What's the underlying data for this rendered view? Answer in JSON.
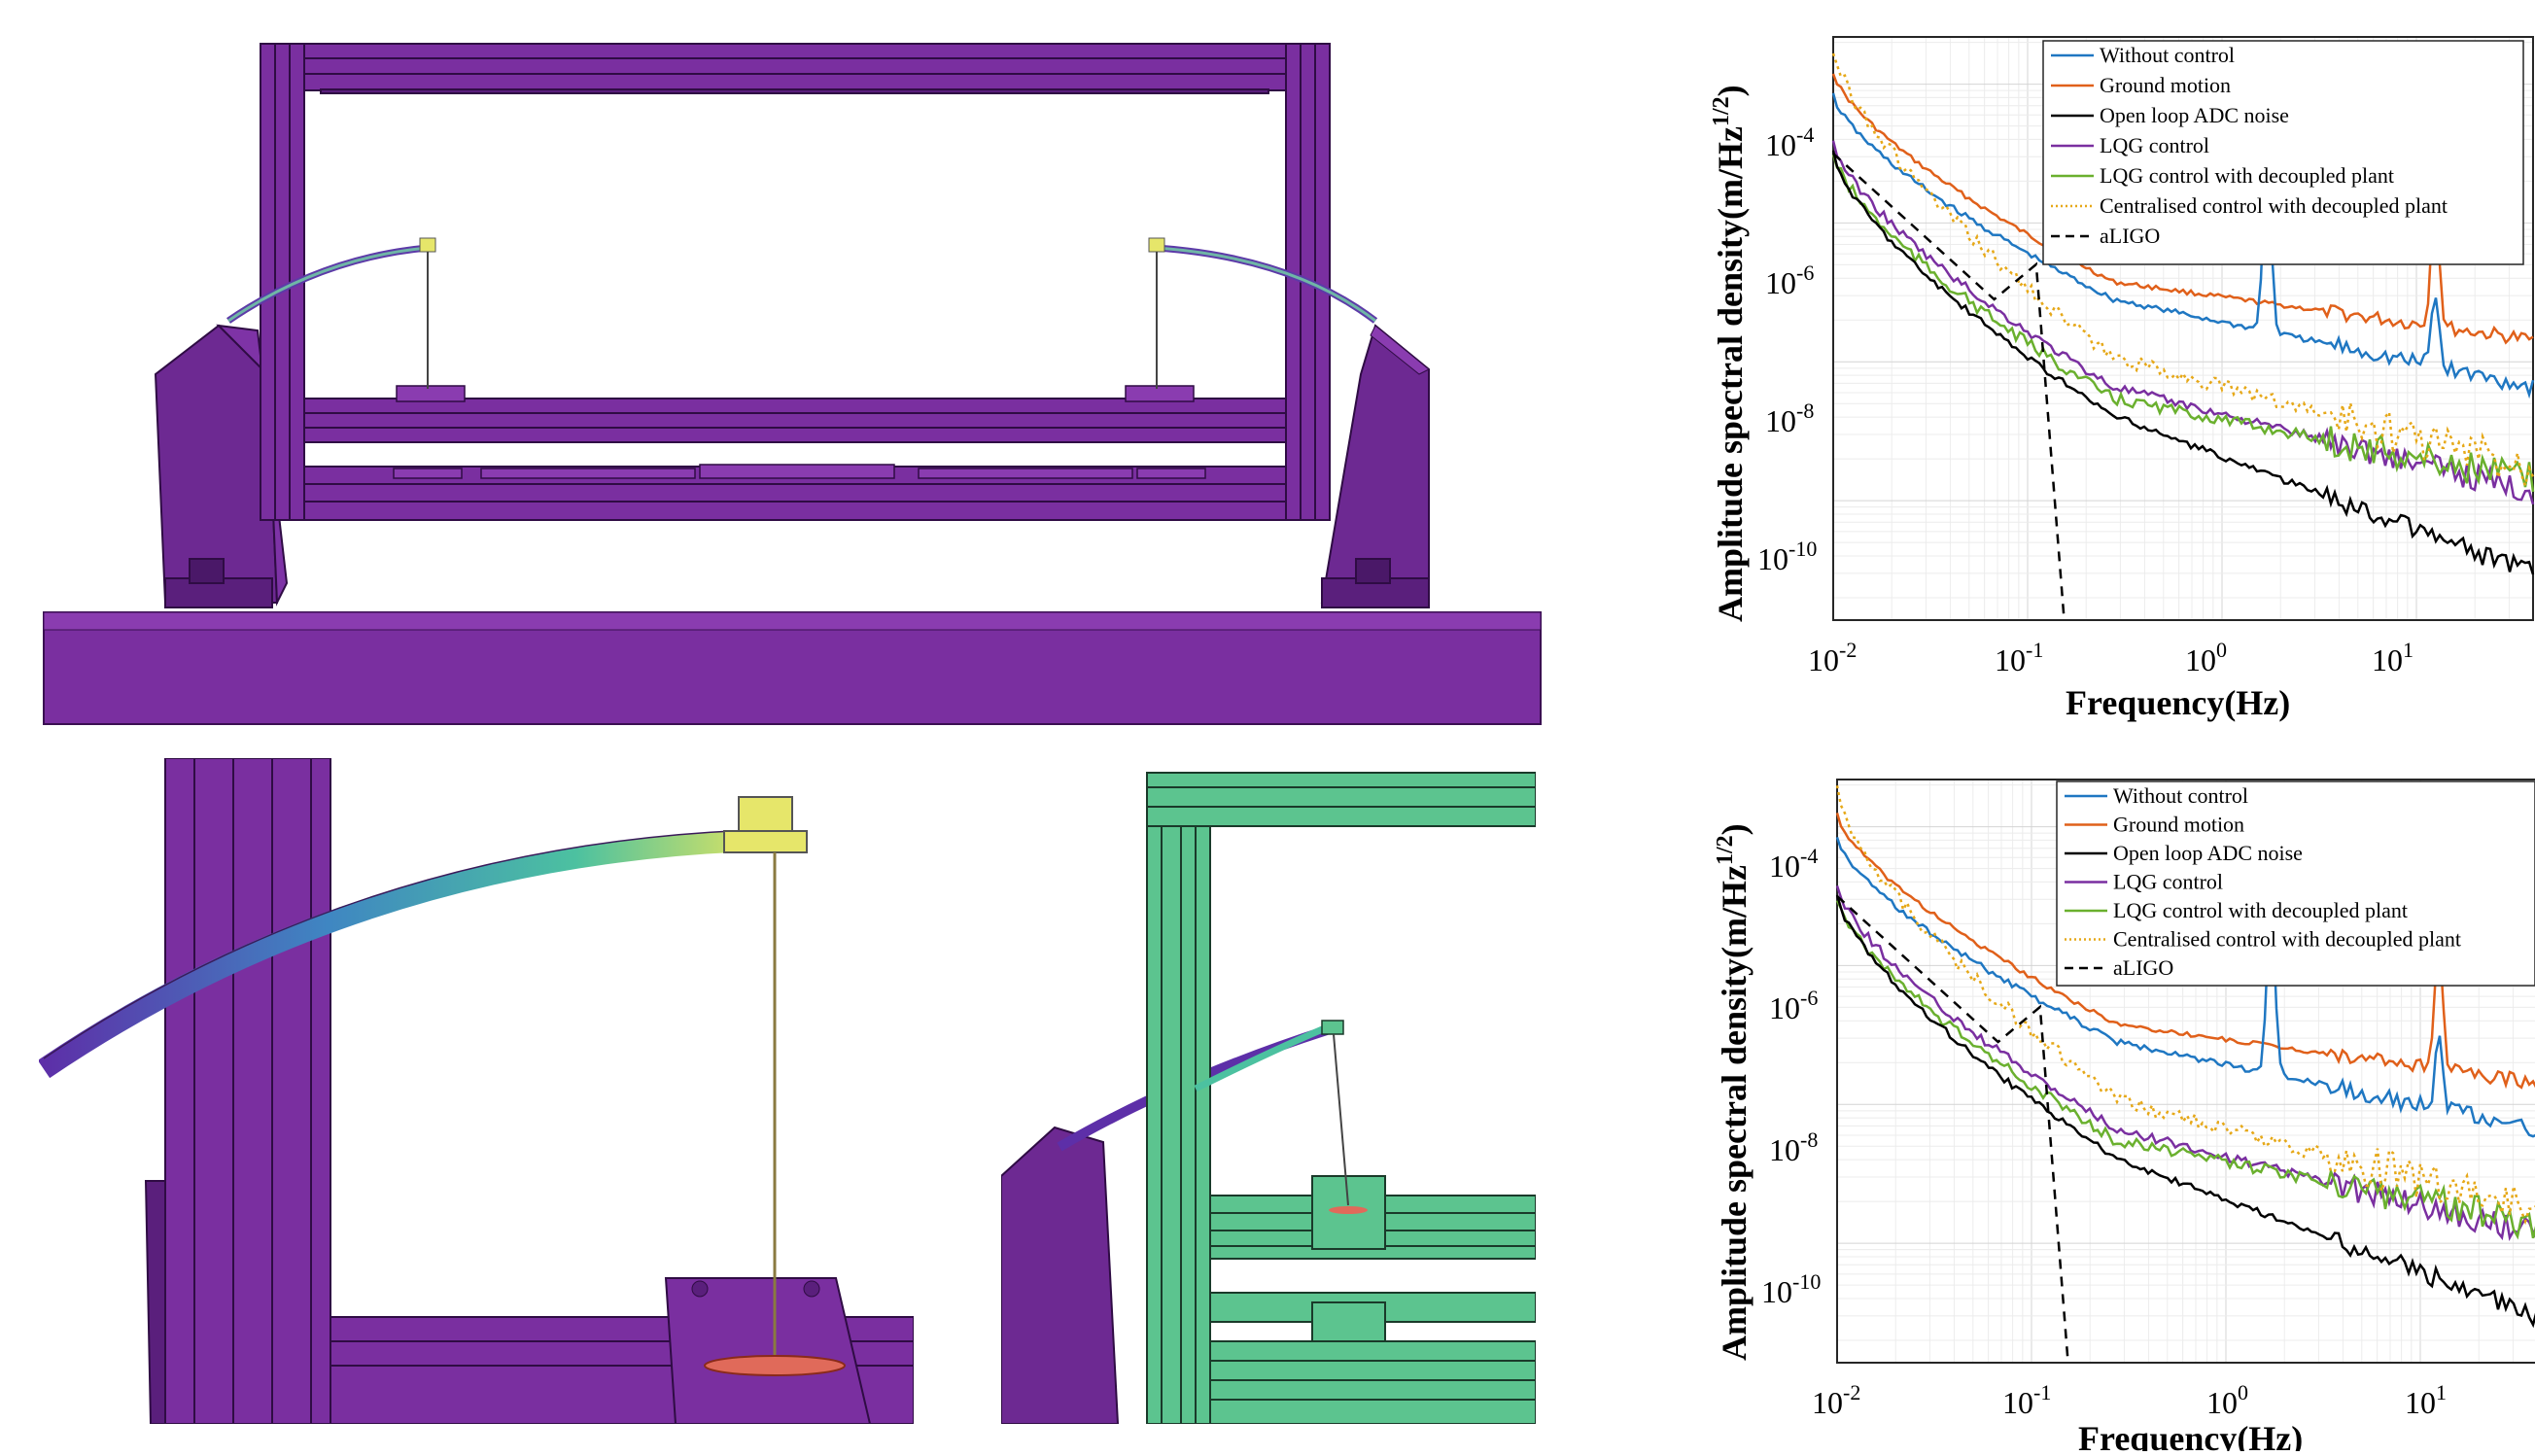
{
  "colors": {
    "frame_purple": "#7a2fa0",
    "frame_purple_dark": "#4e1a6b",
    "frame_green": "#5cc48f",
    "blade_yellow": "#dede70",
    "disc_red": "#e06a5a",
    "without_control": "#1f77c2",
    "ground_motion": "#e0601a",
    "open_loop_adc": "#000000",
    "lqg_control": "#7a2fa0",
    "lqg_decoupled": "#6ab02e",
    "centralised_decoupled": "#e6a818",
    "aligo": "#000000"
  },
  "charts": [
    {
      "legend": [
        {
          "key": "without_control",
          "label": "Without control",
          "style": "solid"
        },
        {
          "key": "ground_motion",
          "label": "Ground motion",
          "style": "solid"
        },
        {
          "key": "open_loop_adc",
          "label": "Open loop ADC noise",
          "style": "solid"
        },
        {
          "key": "lqg_control",
          "label": "LQG control",
          "style": "solid"
        },
        {
          "key": "lqg_decoupled",
          "label": "LQG control with decoupled plant",
          "style": "solid"
        },
        {
          "key": "centralised_decoupled",
          "label": "Centralised control with decoupled plant",
          "style": "dotted"
        },
        {
          "key": "aligo",
          "label": "aLIGO",
          "style": "dashed"
        }
      ],
      "ylabel": "Amplitude spectral density(m/Hz",
      "ylabel_sup": "1/2",
      "ylabel_end": ")",
      "xlabel": "Frequency(Hz)"
    },
    {
      "legend": [
        {
          "key": "without_control",
          "label": "Without control",
          "style": "solid"
        },
        {
          "key": "ground_motion",
          "label": "Ground motion",
          "style": "solid"
        },
        {
          "key": "open_loop_adc",
          "label": "Open loop ADC noise",
          "style": "solid"
        },
        {
          "key": "lqg_control",
          "label": "LQG control",
          "style": "solid"
        },
        {
          "key": "lqg_decoupled",
          "label": "LQG control with decoupled plant",
          "style": "solid"
        },
        {
          "key": "centralised_decoupled",
          "label": "Centralised control with decoupled plant",
          "style": "dotted"
        },
        {
          "key": "aligo",
          "label": "aLIGO",
          "style": "dashed"
        }
      ],
      "ylabel": "Amplitude spectral density(m/Hz",
      "ylabel_sup": "1/2",
      "ylabel_end": ")",
      "xlabel": "Frequency(Hz)"
    }
  ],
  "ticks": {
    "x": [
      {
        "base": "10",
        "exp": "-2"
      },
      {
        "base": "10",
        "exp": "-1"
      },
      {
        "base": "10",
        "exp": "0"
      },
      {
        "base": "10",
        "exp": "1"
      }
    ],
    "y": [
      {
        "base": "10",
        "exp": "-4"
      },
      {
        "base": "10",
        "exp": "-6"
      },
      {
        "base": "10",
        "exp": "-8"
      },
      {
        "base": "10",
        "exp": "-10"
      }
    ]
  }
}
